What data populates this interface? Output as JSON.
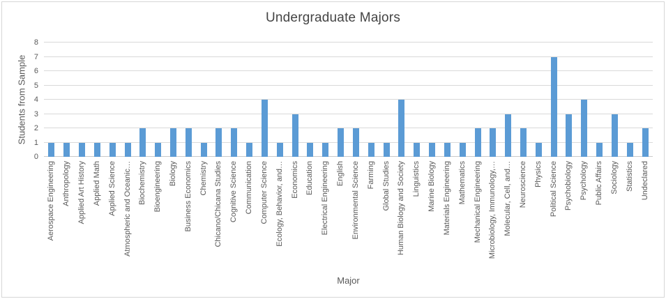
{
  "chart_data": {
    "type": "bar",
    "title": "Undergraduate Majors",
    "xlabel": "Major",
    "ylabel": "Students from Sample",
    "ylim": [
      0,
      8
    ],
    "ytick_interval": 1,
    "grid": true,
    "legend": "none",
    "bar_color": "#5B9BD5",
    "gridline_color": "#D9D9D9",
    "axis_line_color": "#C9C9C9",
    "text_color": "#595959",
    "title_color": "#444444",
    "categories": [
      "Aerospace Engineering",
      "Anthropology",
      "Applied Art History",
      "Applied Math",
      "Applied Science",
      "Atmospheric and Oceanic…",
      "Biochemistry",
      "Bioengineering",
      "Biology",
      "Business Economics",
      "Chemistry",
      "Chicano/Chicana Studies",
      "Cognitive Science",
      "Communication",
      "Computer Science",
      "Ecology, Behavior, and…",
      "Economics",
      "Education",
      "Electrical Engineering",
      "English",
      "Environmental Science",
      "Farming",
      "Global Studies",
      "Human Biology and Society",
      "Linguistics",
      "Marine Biology",
      "Materials Engineering",
      "Mathematics",
      "Mechanical Engineering",
      "Microbiology, Immunology,…",
      "Molecular, Cell, and…",
      "Neuroscience",
      "Physics",
      "Political Science",
      "Psychobiology",
      "Psychology",
      "Public Affairs",
      "Sociology",
      "Statistics",
      "Undeclared"
    ],
    "values": [
      1,
      1,
      1,
      1,
      1,
      1,
      2,
      1,
      2,
      2,
      1,
      2,
      2,
      1,
      4,
      1,
      3,
      1,
      1,
      2,
      2,
      1,
      1,
      4,
      1,
      1,
      1,
      1,
      2,
      2,
      3,
      2,
      1,
      7,
      3,
      4,
      1,
      3,
      1,
      2
    ],
    "yticks": [
      0,
      1,
      2,
      3,
      4,
      5,
      6,
      7,
      8
    ]
  }
}
